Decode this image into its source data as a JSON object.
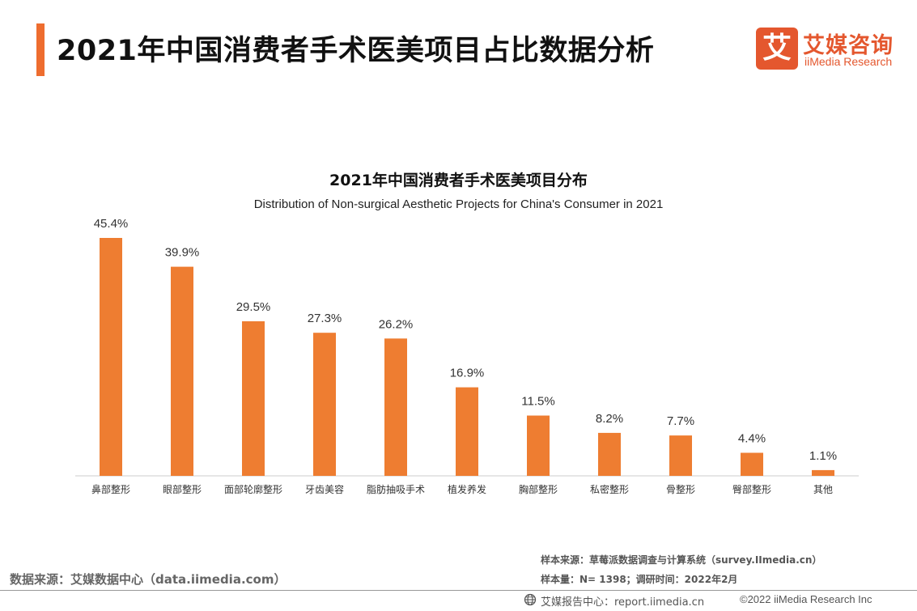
{
  "header": {
    "title": "2021年中国消费者手术医美项目占比数据分析",
    "accent_color": "#ee6d2f"
  },
  "logo": {
    "mark": "艾",
    "name_cn": "艾媒咨询",
    "name_en": "iiMedia Research",
    "color": "#e4572e"
  },
  "chart_data": {
    "type": "bar",
    "title": "2021年中国消费者手术医美项目分布",
    "subtitle": "Distribution of Non-surgical Aesthetic Projects for China's Consumer in 2021",
    "categories": [
      "鼻部整形",
      "眼部整形",
      "面部轮廓整形",
      "牙齿美容",
      "脂肪抽吸手术",
      "植发养发",
      "胸部整形",
      "私密整形",
      "骨整形",
      "臀部整形",
      "其他"
    ],
    "values": [
      45.4,
      39.9,
      29.5,
      27.3,
      26.2,
      16.9,
      11.5,
      8.2,
      7.7,
      4.4,
      1.1
    ],
    "value_labels": [
      "45.4%",
      "39.9%",
      "29.5%",
      "27.3%",
      "26.2%",
      "16.9%",
      "11.5%",
      "8.2%",
      "7.7%",
      "4.4%",
      "1.1%"
    ],
    "unit": "%",
    "ylim": [
      0,
      50
    ],
    "grid": false,
    "bar_color": "#ee7d31"
  },
  "footer": {
    "data_source": "数据来源：艾媒数据中心（data.iimedia.com）",
    "sample_source": "样本来源：草莓派数据调查与计算系统（survey.IImedia.cn）",
    "sample_size": "样本量：N= 1398；调研时间：2022年2月",
    "report_center": "艾媒报告中心：report.iimedia.cn",
    "copyright": "©2022  iiMedia Research  Inc"
  }
}
